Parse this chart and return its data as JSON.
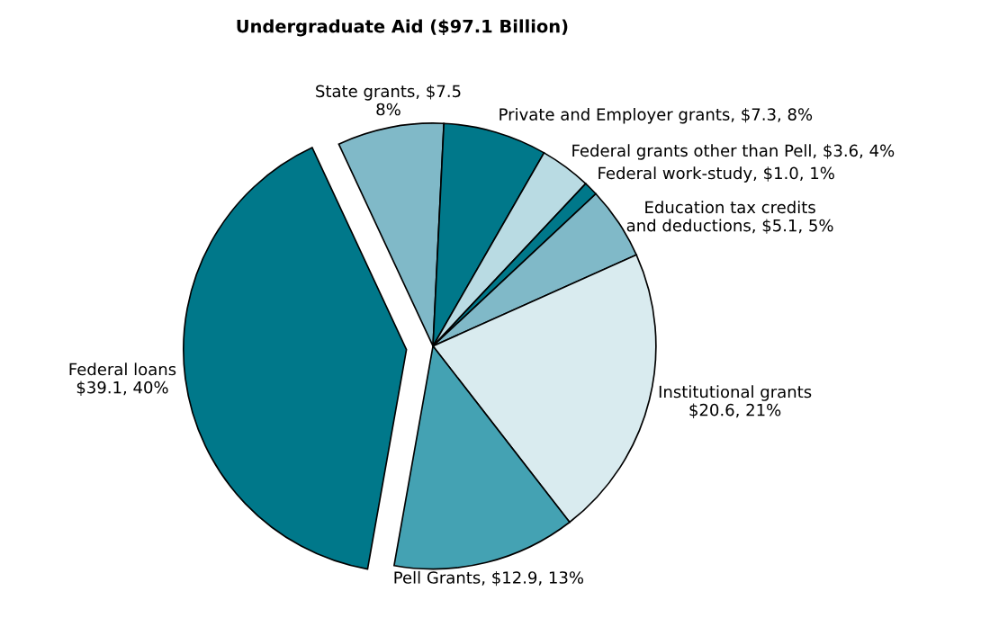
{
  "chart_data": {
    "type": "pie",
    "title": "Undergraduate Aid ($97.1 Billion)",
    "categories": [
      "State grants, $7.5\n8%",
      "Private and Employer grants, $7.3, 8%",
      "Federal grants other than Pell, $3.6, 4%",
      "Federal work-study, $1.0, 1%",
      "Education tax credits\nand deductions, $5.1, 5%",
      "Institutional grants\n$20.6, 21%",
      "Pell Grants, $12.9, 13%",
      "Federal loans\n$39.1, 40%"
    ],
    "values": [
      7.5,
      7.3,
      3.6,
      1.0,
      5.1,
      20.6,
      12.9,
      39.1
    ],
    "colors": [
      "#80b9c8",
      "#00788a",
      "#b9dbe3",
      "#00788a",
      "#80b9c8",
      "#d9ebef",
      "#44a2b3",
      "#00788a"
    ]
  }
}
